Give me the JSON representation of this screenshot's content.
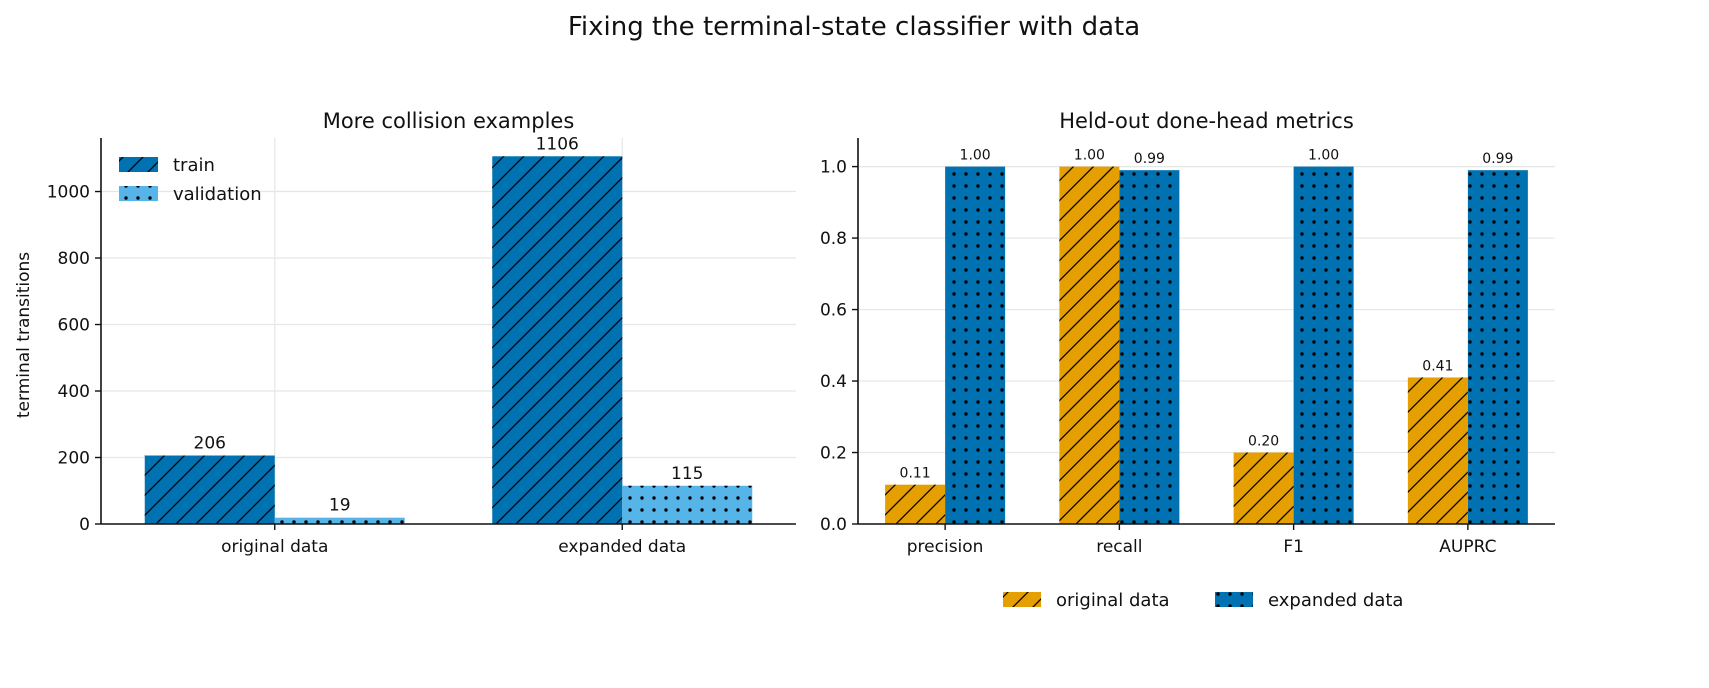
{
  "figure_title": "Fixing the terminal-state classifier with data",
  "colors": {
    "train": "#0072b2",
    "validation": "#56b4e9",
    "original": "#e69f00",
    "expanded": "#0072b2",
    "grid": "#e6e6e6",
    "axis": "#111111"
  },
  "chart_data": [
    {
      "type": "bar",
      "title": "More collision examples",
      "xlabel": "",
      "ylabel": "terminal transitions",
      "categories": [
        "original data",
        "expanded data"
      ],
      "series": [
        {
          "name": "train",
          "values": [
            206,
            1106
          ],
          "color": "#0072b2",
          "pattern": "hatch"
        },
        {
          "name": "validation",
          "values": [
            19,
            115
          ],
          "color": "#56b4e9",
          "pattern": "dots"
        }
      ],
      "data_labels": [
        [
          "206",
          "1106"
        ],
        [
          "19",
          "115"
        ]
      ],
      "ylim": [
        0,
        1161
      ],
      "yticks": [
        0,
        200,
        400,
        600,
        800,
        1000
      ],
      "ytick_labels": [
        "0",
        "200",
        "400",
        "600",
        "800",
        "1000"
      ],
      "grid": true,
      "legend_position": "top-left"
    },
    {
      "type": "bar",
      "title": "Held-out done-head metrics",
      "xlabel": "",
      "ylabel": "",
      "categories": [
        "precision",
        "recall",
        "F1",
        "AUPRC"
      ],
      "series": [
        {
          "name": "original data",
          "values": [
            0.11,
            1.0,
            0.2,
            0.41
          ],
          "color": "#e69f00",
          "pattern": "hatch"
        },
        {
          "name": "expanded data",
          "values": [
            1.0,
            0.99,
            1.0,
            0.99
          ],
          "color": "#0072b2",
          "pattern": "dots"
        }
      ],
      "data_labels": [
        [
          "0.11",
          "1.00",
          "0.20",
          "0.41"
        ],
        [
          "1.00",
          "0.99",
          "1.00",
          "0.99"
        ]
      ],
      "ylim": [
        0,
        1.08
      ],
      "yticks": [
        0,
        0.2,
        0.4,
        0.6,
        0.8,
        1.0
      ],
      "ytick_labels": [
        "0.0",
        "0.2",
        "0.4",
        "0.6",
        "0.8",
        "1.0"
      ],
      "grid": true,
      "legend_position": "bottom-center"
    }
  ]
}
